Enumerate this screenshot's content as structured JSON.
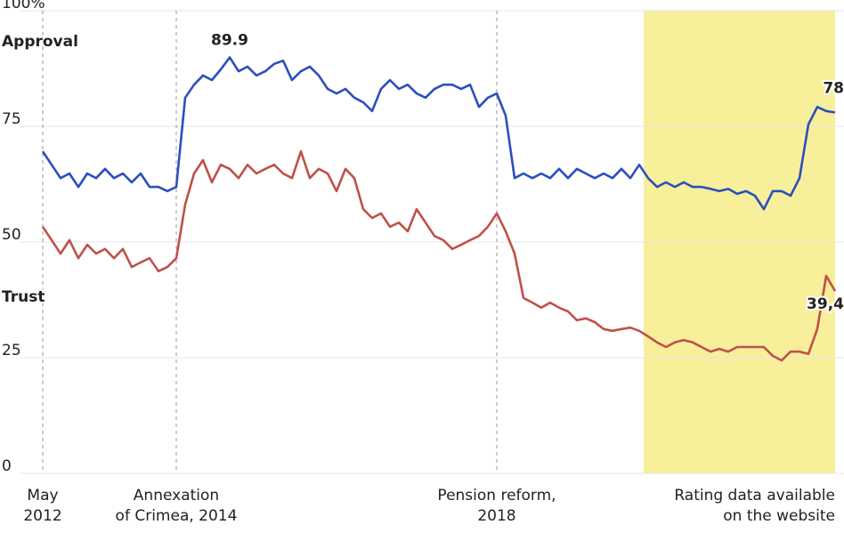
{
  "chart_data": {
    "type": "line",
    "categories": [
      "May\n2012",
      null,
      null,
      null,
      null,
      null,
      null,
      null,
      null,
      null,
      null,
      null,
      null,
      null,
      null,
      "Annexation\nof Crimea, 2014",
      null,
      null,
      null,
      null,
      null,
      null,
      null,
      null,
      null,
      null,
      null,
      null,
      null,
      null,
      null,
      null,
      null,
      null,
      null,
      null,
      null,
      null,
      null,
      null,
      null,
      null,
      null,
      null,
      null,
      null,
      null,
      null,
      null,
      null,
      null,
      "Pension reform,\n2018",
      null,
      null,
      null,
      null,
      null,
      null,
      null,
      null,
      null,
      null,
      null,
      null,
      null,
      null,
      null,
      null,
      null,
      null,
      null,
      null,
      null,
      null,
      null,
      null,
      null,
      null,
      null,
      null,
      null,
      null,
      null,
      null,
      null,
      null,
      null,
      null,
      null,
      null
    ],
    "highlight": {
      "label": "Rating data available\non the website",
      "from": 68,
      "color": "#f8ef9b"
    },
    "ylim": [
      0,
      100
    ],
    "yticks": [
      0,
      25,
      50,
      75,
      {
        "value": 100,
        "label": "100%"
      }
    ],
    "grid": true,
    "series": [
      {
        "name": "Approval",
        "color": "#2b4fbd",
        "values": [
          69.6,
          66.7,
          63.8,
          64.8,
          61.9,
          64.8,
          63.8,
          65.8,
          63.8,
          64.8,
          62.9,
          64.8,
          61.9,
          61.9,
          61,
          61.9,
          81.2,
          84,
          86,
          85,
          87.3,
          89.9,
          86.9,
          87.9,
          86,
          86.9,
          88.5,
          89.2,
          85,
          86.9,
          87.9,
          86,
          83.1,
          82.1,
          83.1,
          81.2,
          80.2,
          78.3,
          83.1,
          85,
          83.1,
          84,
          82.1,
          81.2,
          83.1,
          84,
          84,
          83.1,
          84,
          79.2,
          81.2,
          82.1,
          77.3,
          63.8,
          64.8,
          63.8,
          64.8,
          63.8,
          65.8,
          63.8,
          65.8,
          64.8,
          63.8,
          64.8,
          63.8,
          65.8,
          63.8,
          66.7,
          63.8,
          61.9,
          62.9,
          61.9,
          62.9,
          61.9,
          61.9,
          61.5,
          61,
          61.5,
          60.4,
          61,
          60,
          57.1,
          61,
          61,
          60,
          63.8,
          75.4,
          79.2,
          78.3,
          78
        ],
        "value_labels": [
          null,
          null,
          null,
          null,
          null,
          null,
          null,
          null,
          null,
          null,
          null,
          null,
          null,
          null,
          null,
          null,
          null,
          null,
          null,
          null,
          null,
          "89.9",
          null,
          null,
          null,
          null,
          null,
          null,
          null,
          null,
          null,
          null,
          null,
          null,
          null,
          null,
          null,
          null,
          null,
          null,
          null,
          null,
          null,
          null,
          null,
          null,
          null,
          null,
          null,
          null,
          null,
          null,
          null,
          null,
          null,
          null,
          null,
          null,
          null,
          null,
          null,
          null,
          null,
          null,
          null,
          null,
          null,
          null,
          null,
          null,
          null,
          null,
          null,
          null,
          null,
          null,
          null,
          null,
          null,
          null,
          null,
          null,
          null,
          null,
          null,
          null,
          null,
          null,
          null,
          "78"
        ]
      },
      {
        "name": "Trust",
        "color": "#bf514a",
        "values": [
          53.3,
          50.4,
          47.5,
          50.4,
          46.5,
          49.4,
          47.5,
          48.5,
          46.5,
          48.5,
          44.6,
          45.6,
          46.5,
          43.7,
          44.6,
          46.5,
          58.1,
          64.8,
          67.7,
          62.9,
          66.7,
          65.8,
          63.8,
          66.7,
          64.8,
          65.8,
          66.7,
          64.8,
          63.8,
          69.6,
          63.8,
          65.8,
          64.8,
          61,
          65.8,
          63.8,
          57.1,
          55.2,
          56.2,
          53.3,
          54.2,
          52.3,
          57.1,
          54.2,
          51.3,
          50.4,
          48.5,
          49.4,
          50.4,
          51.3,
          53.3,
          56.2,
          52.3,
          47.5,
          37.9,
          36.9,
          35.8,
          36.9,
          35.8,
          35,
          33.1,
          33.5,
          32.7,
          31.2,
          30.8,
          31.2,
          31.5,
          30.8,
          29.6,
          28.3,
          27.3,
          28.3,
          28.8,
          28.3,
          27.3,
          26.3,
          26.9,
          26.3,
          27.3,
          27.3,
          27.3,
          27.3,
          25.4,
          24.4,
          26.3,
          26.3,
          25.8,
          31.2,
          42.7,
          39.4
        ],
        "value_labels": [
          null,
          null,
          null,
          null,
          null,
          null,
          null,
          null,
          null,
          null,
          null,
          null,
          null,
          null,
          null,
          null,
          null,
          null,
          null,
          null,
          null,
          null,
          null,
          null,
          null,
          null,
          null,
          null,
          null,
          null,
          null,
          null,
          null,
          null,
          null,
          null,
          null,
          null,
          null,
          null,
          null,
          null,
          null,
          null,
          null,
          null,
          null,
          null,
          null,
          null,
          null,
          null,
          null,
          null,
          null,
          null,
          null,
          null,
          null,
          null,
          null,
          null,
          null,
          null,
          null,
          null,
          null,
          null,
          null,
          null,
          null,
          null,
          null,
          null,
          null,
          null,
          null,
          null,
          null,
          null,
          null,
          null,
          null,
          null,
          null,
          null,
          null,
          null,
          null,
          "39,4"
        ]
      }
    ]
  }
}
